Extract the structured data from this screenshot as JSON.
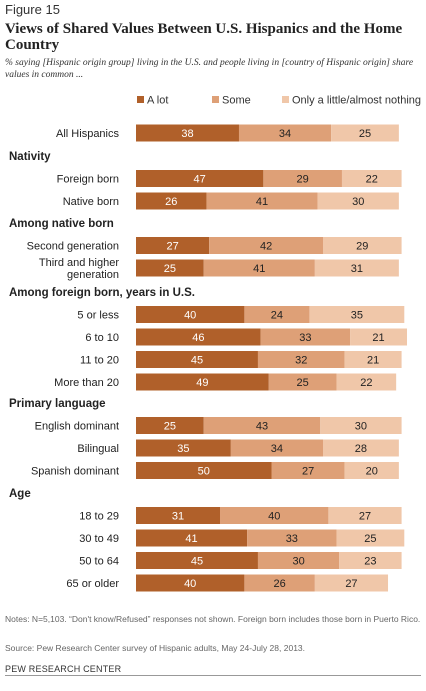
{
  "figure_label": "Figure 15",
  "notes": "Notes: N=5,103. “Don't know/Refused” responses not shown. Foreign born includes those born in Puerto Rico.",
  "source": "Source: Pew Research Center survey of Hispanic adults, May 24-July 28, 2013.",
  "footer": "PEW RESEARCH CENTER",
  "chart_data": {
    "type": "bar",
    "orientation": "horizontal",
    "stacked": true,
    "title": "Views of Shared Values Between U.S. Hispanics and the Home Country",
    "subtitle": "% saying [Hispanic origin group] living in the U.S. and people living in [country of Hispanic origin] share values in common ...",
    "legend_position": "top",
    "grid": false,
    "series": [
      {
        "name": "A lot",
        "color": "#b0602a"
      },
      {
        "name": "Some",
        "color": "#dea077"
      },
      {
        "name": "Only a little/almost nothing",
        "color": "#f0c7a9"
      }
    ],
    "groups": [
      {
        "heading": "",
        "rows": [
          {
            "label": [
              "All Hispanics"
            ],
            "values": [
              38,
              34,
              25
            ]
          }
        ]
      },
      {
        "heading": "Nativity",
        "rows": [
          {
            "label": [
              "Foreign born"
            ],
            "values": [
              47,
              29,
              22
            ]
          },
          {
            "label": [
              "Native born"
            ],
            "values": [
              26,
              41,
              30
            ]
          }
        ]
      },
      {
        "heading": "Among native born",
        "rows": [
          {
            "label": [
              "Second generation"
            ],
            "values": [
              27,
              42,
              29
            ]
          },
          {
            "label": [
              "Third and higher",
              "generation"
            ],
            "values": [
              25,
              41,
              31
            ]
          }
        ]
      },
      {
        "heading": "Among foreign born, years in U.S.",
        "rows": [
          {
            "label": [
              "5 or less"
            ],
            "values": [
              40,
              24,
              35
            ]
          },
          {
            "label": [
              "6 to 10"
            ],
            "values": [
              46,
              33,
              21
            ]
          },
          {
            "label": [
              "11 to 20"
            ],
            "values": [
              45,
              32,
              21
            ]
          },
          {
            "label": [
              "More than 20"
            ],
            "values": [
              49,
              25,
              22
            ]
          }
        ]
      },
      {
        "heading": "Primary language",
        "rows": [
          {
            "label": [
              "English dominant"
            ],
            "values": [
              25,
              43,
              30
            ]
          },
          {
            "label": [
              "Bilingual"
            ],
            "values": [
              35,
              34,
              28
            ]
          },
          {
            "label": [
              "Spanish dominant"
            ],
            "values": [
              50,
              27,
              20
            ]
          }
        ]
      },
      {
        "heading": "Age",
        "rows": [
          {
            "label": [
              "18 to 29"
            ],
            "values": [
              31,
              40,
              27
            ]
          },
          {
            "label": [
              "30 to 49"
            ],
            "values": [
              41,
              33,
              25
            ]
          },
          {
            "label": [
              "50 to 64"
            ],
            "values": [
              45,
              30,
              23
            ]
          },
          {
            "label": [
              "65 or older"
            ],
            "values": [
              40,
              26,
              27
            ]
          }
        ]
      }
    ]
  }
}
